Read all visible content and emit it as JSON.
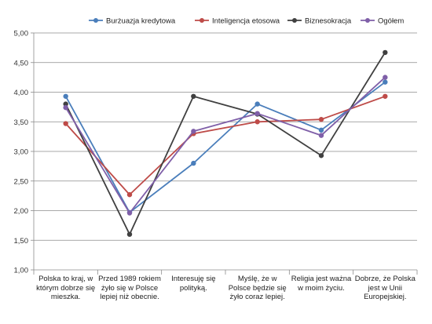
{
  "chart_data": {
    "type": "line",
    "categories": [
      "Polska to kraj, w którym dobrze się mieszka.",
      "Przed 1989 rokiem żyło się w Polsce lepiej niż obecnie.",
      "Interesuję się polityką.",
      "Myślę, że w Polsce będzie się żyło coraz lepiej.",
      "Religia jest ważna w moim życiu.",
      "Dobrze, że Polska jest w Unii Europejskiej."
    ],
    "series": [
      {
        "name": "Burżuazja kredytowa",
        "color": "#4a7ebb",
        "values": [
          3.93,
          1.97,
          2.8,
          3.8,
          3.36,
          4.17
        ]
      },
      {
        "name": "Inteligencja etosowa",
        "color": "#be4b48",
        "values": [
          3.47,
          2.27,
          3.3,
          3.5,
          3.54,
          3.93
        ]
      },
      {
        "name": "Biznesokracja",
        "color": "#404040",
        "values": [
          3.8,
          1.6,
          3.93,
          3.63,
          2.93,
          4.67
        ]
      },
      {
        "name": "Ogółem",
        "color": "#7f5fa8",
        "values": [
          3.74,
          1.96,
          3.34,
          3.64,
          3.27,
          4.25
        ]
      }
    ],
    "y_ticks": [
      "1,00",
      "1,50",
      "2,00",
      "2,50",
      "3,00",
      "3,50",
      "4,00",
      "4,50",
      "5,00"
    ],
    "ylim": [
      1,
      5
    ],
    "grid": true,
    "legend_position": "top"
  }
}
